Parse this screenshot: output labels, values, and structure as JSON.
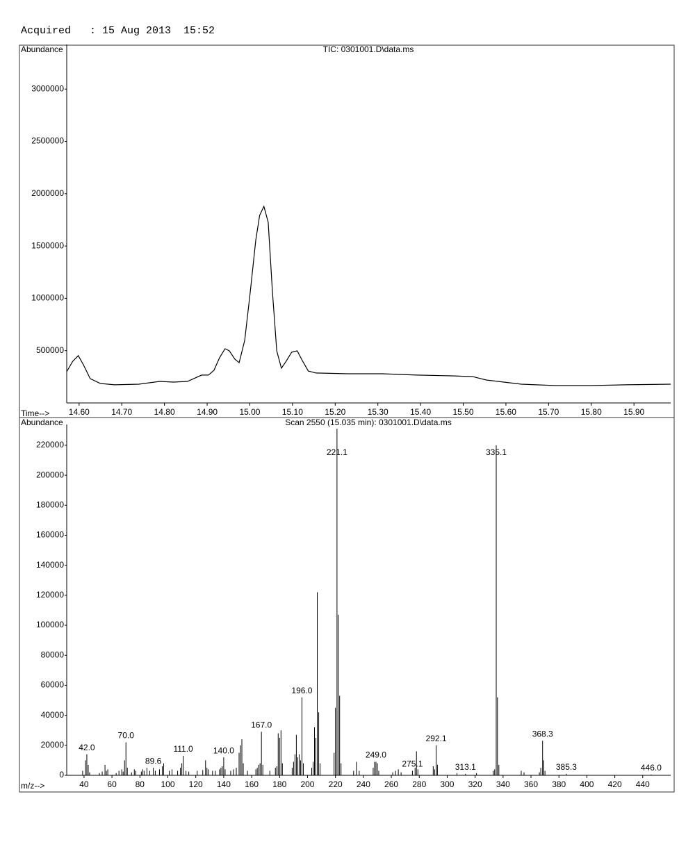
{
  "header": "Acquired   : 15 Aug 2013  15:52",
  "chart_data": [
    {
      "type": "line",
      "title": "TIC: 0301001.D\\data.ms",
      "y_label": "Abundance",
      "x_label": "Time-->",
      "color": "#000000",
      "x": [
        14.571,
        14.585,
        14.598,
        14.61,
        14.626,
        14.65,
        14.683,
        14.74,
        14.789,
        14.821,
        14.854,
        14.887,
        14.903,
        14.916,
        14.929,
        14.942,
        14.952,
        14.965,
        14.975,
        14.988,
        15.001,
        15.014,
        15.023,
        15.033,
        15.043,
        15.053,
        15.063,
        15.074,
        15.085,
        15.098,
        15.111,
        15.124,
        15.137,
        15.155,
        15.229,
        15.31,
        15.392,
        15.473,
        15.522,
        15.554,
        15.636,
        15.717,
        15.799,
        15.88,
        15.986
      ],
      "values": [
        299000,
        398000,
        452000,
        365000,
        232000,
        186000,
        173000,
        179000,
        206000,
        199000,
        206000,
        266000,
        266000,
        312000,
        432000,
        518000,
        498000,
        418000,
        385000,
        598000,
        1062000,
        1560000,
        1793000,
        1879000,
        1726000,
        1062000,
        498000,
        332000,
        398000,
        485000,
        498000,
        398000,
        305000,
        286000,
        279000,
        279000,
        266000,
        259000,
        252000,
        219000,
        179000,
        166000,
        166000,
        173000,
        179000
      ],
      "xlim": [
        14.571,
        15.986
      ],
      "ylim": [
        0,
        3400000
      ],
      "xticks": [
        {
          "value": 14.6,
          "label": "14.60"
        },
        {
          "value": 14.7,
          "label": "14.70"
        },
        {
          "value": 14.8,
          "label": "14.80"
        },
        {
          "value": 14.9,
          "label": "14.90"
        },
        {
          "value": 15.0,
          "label": "15.00"
        },
        {
          "value": 15.1,
          "label": "15.10"
        },
        {
          "value": 15.2,
          "label": "15.20"
        },
        {
          "value": 15.3,
          "label": "15.30"
        },
        {
          "value": 15.4,
          "label": "15.40"
        },
        {
          "value": 15.5,
          "label": "15.50"
        },
        {
          "value": 15.6,
          "label": "15.60"
        },
        {
          "value": 15.7,
          "label": "15.70"
        },
        {
          "value": 15.8,
          "label": "15.80"
        },
        {
          "value": 15.9,
          "label": "15.90"
        }
      ],
      "yticks": [
        500000,
        1000000,
        1500000,
        2000000,
        2500000,
        3000000
      ]
    },
    {
      "type": "bar",
      "title": "Scan 2550 (15.035 min): 0301001.D\\data.ms",
      "y_label": "Abundance",
      "x_label": "m/z-->",
      "color": "#000000",
      "x": [
        39,
        41,
        42,
        43,
        44,
        51,
        53,
        55,
        56,
        57,
        63,
        65,
        67,
        68,
        69,
        70,
        71,
        74,
        76,
        77,
        81,
        82,
        83,
        85,
        87,
        89.6,
        91,
        94,
        96,
        97,
        101,
        103,
        107,
        109,
        110,
        111,
        113,
        115,
        121,
        125,
        127,
        128,
        129,
        132,
        134,
        137,
        138,
        139,
        140,
        141,
        145,
        147,
        149,
        151,
        152,
        153,
        154,
        157,
        163,
        164,
        165,
        166,
        167,
        168,
        173,
        177,
        178,
        179,
        180,
        181,
        182,
        189,
        190,
        191,
        192,
        193,
        194,
        195,
        196,
        197,
        203,
        204,
        205,
        206,
        207,
        208,
        209,
        219,
        220,
        221.1,
        222,
        223,
        224,
        233,
        235,
        237,
        247,
        248,
        249,
        250,
        251,
        261,
        263,
        265,
        267,
        275.1,
        277,
        278,
        279,
        290,
        291,
        292.1,
        293,
        307,
        313.1,
        321,
        333,
        334,
        335.1,
        336,
        337,
        353,
        355,
        366,
        367,
        368.3,
        369,
        370,
        385.3,
        446
      ],
      "values": [
        3000,
        10000,
        14000,
        7000,
        2000,
        1500,
        2500,
        7000,
        3000,
        4000,
        1500,
        3000,
        4000,
        2500,
        10000,
        22000,
        5000,
        2000,
        4000,
        3000,
        2500,
        4000,
        3000,
        5000,
        3000,
        5000,
        3000,
        4000,
        6000,
        8000,
        3000,
        4000,
        3000,
        5000,
        8000,
        13000,
        3000,
        2500,
        3000,
        3500,
        10000,
        5000,
        4000,
        3000,
        3000,
        4000,
        5000,
        6000,
        12000,
        4000,
        3000,
        4000,
        5000,
        15000,
        20000,
        24000,
        8000,
        3000,
        4000,
        5000,
        7000,
        8000,
        29000,
        7000,
        3000,
        5000,
        6000,
        28000,
        25000,
        30000,
        8000,
        5000,
        9000,
        14000,
        27000,
        12000,
        14000,
        10000,
        52000,
        8000,
        5000,
        9000,
        32000,
        25000,
        122000,
        42000,
        8000,
        15000,
        45000,
        231000,
        107000,
        53000,
        8000,
        3000,
        9000,
        3000,
        5000,
        9000,
        9000,
        8000,
        3000,
        2000,
        3000,
        4000,
        2000,
        3000,
        5000,
        16000,
        4000,
        6000,
        4000,
        20000,
        7000,
        1500,
        1000,
        1500,
        3000,
        4000,
        220000,
        52000,
        7000,
        3000,
        2000,
        2000,
        5000,
        23000,
        10000,
        3000,
        1000,
        500
      ],
      "peak_labels": [
        null,
        null,
        "42.0",
        null,
        null,
        null,
        null,
        null,
        null,
        null,
        null,
        null,
        null,
        null,
        null,
        "70.0",
        null,
        null,
        null,
        null,
        null,
        null,
        null,
        null,
        null,
        "89.6",
        null,
        null,
        null,
        null,
        null,
        null,
        null,
        null,
        null,
        "111.0",
        null,
        null,
        null,
        null,
        null,
        null,
        null,
        null,
        null,
        null,
        null,
        null,
        "140.0",
        null,
        null,
        null,
        null,
        null,
        null,
        null,
        null,
        null,
        null,
        null,
        null,
        null,
        "167.0",
        null,
        null,
        null,
        null,
        null,
        null,
        null,
        null,
        null,
        null,
        null,
        null,
        null,
        null,
        null,
        "196.0",
        null,
        null,
        null,
        null,
        null,
        null,
        null,
        null,
        null,
        null,
        "221.1",
        null,
        null,
        null,
        null,
        null,
        null,
        null,
        null,
        "249.0",
        null,
        null,
        null,
        null,
        null,
        null,
        "275.1",
        null,
        null,
        null,
        null,
        null,
        "292.1",
        null,
        null,
        "313.1",
        null,
        null,
        null,
        "335.1",
        null,
        null,
        null,
        null,
        null,
        null,
        "368.3",
        null,
        null,
        "385.3",
        "446.0"
      ],
      "xlim": [
        27.6,
        460
      ],
      "ylim": [
        0,
        232000
      ],
      "xticks": [
        40,
        60,
        80,
        100,
        120,
        140,
        160,
        180,
        200,
        220,
        240,
        260,
        280,
        300,
        320,
        340,
        360,
        380,
        400,
        420,
        440
      ],
      "yticks": [
        0,
        20000,
        40000,
        60000,
        80000,
        100000,
        120000,
        140000,
        160000,
        180000,
        200000,
        220000
      ]
    }
  ]
}
